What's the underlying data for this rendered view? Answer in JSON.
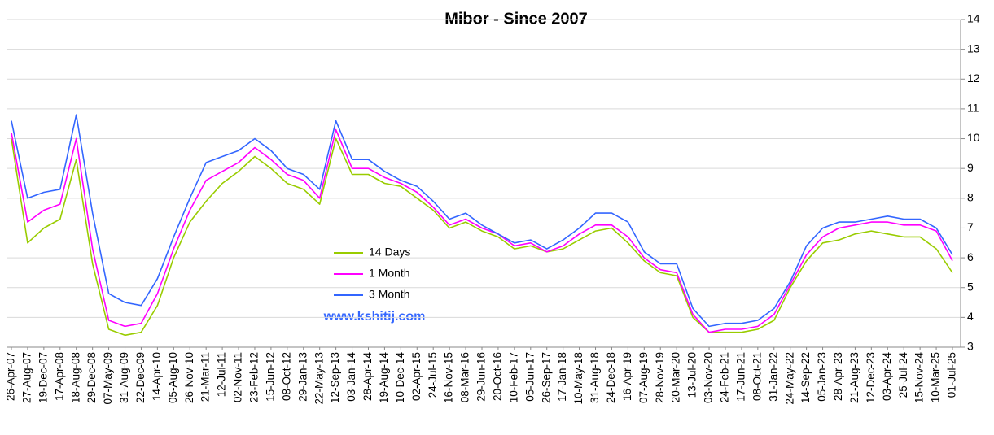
{
  "chart_data": {
    "type": "line",
    "title": "Mibor -  Since 2007",
    "categories": [
      "26-Apr-07",
      "27-Aug-07",
      "19-Dec-07",
      "17-Apr-08",
      "18-Aug-08",
      "29-Dec-08",
      "07-May-09",
      "31-Aug-09",
      "22-Dec-09",
      "14-Apr-10",
      "05-Aug-10",
      "26-Nov-10",
      "21-Mar-11",
      "12-Jul-11",
      "02-Nov-11",
      "23-Feb-12",
      "15-Jun-12",
      "08-Oct-12",
      "29-Jan-13",
      "22-May-13",
      "12-Sep-13",
      "03-Jan-14",
      "28-Apr-14",
      "19-Aug-14",
      "10-Dec-14",
      "02-Apr-15",
      "24-Jul-15",
      "16-Nov-15",
      "08-Mar-16",
      "29-Jun-16",
      "20-Oct-16",
      "10-Feb-17",
      "05-Jun-17",
      "26-Sep-17",
      "17-Jan-18",
      "10-May-18",
      "31-Aug-18",
      "24-Dec-18",
      "16-Apr-19",
      "07-Aug-19",
      "28-Nov-19",
      "20-Mar-20",
      "13-Jul-20",
      "03-Nov-20",
      "24-Feb-21",
      "17-Jun-21",
      "08-Oct-21",
      "31-Jan-22",
      "24-May-22",
      "14-Sep-22",
      "05-Jan-23",
      "28-Apr-23",
      "21-Aug-23",
      "12-Dec-23",
      "03-Apr-24",
      "25-Jul-24",
      "15-Nov-24",
      "10-Mar-25",
      "01-Jul-25"
    ],
    "series": [
      {
        "name": "14 Days",
        "color": "#99cc00",
        "values": [
          10,
          6.5,
          7.0,
          7.3,
          9.3,
          5.8,
          3.6,
          3.4,
          3.5,
          4.4,
          6.0,
          7.2,
          7.9,
          8.5,
          8.9,
          9.4,
          9.0,
          8.5,
          8.3,
          7.8,
          10.0,
          8.8,
          8.8,
          8.5,
          8.4,
          8.0,
          7.6,
          7.0,
          7.2,
          6.9,
          6.7,
          6.3,
          6.4,
          6.2,
          6.3,
          6.6,
          6.9,
          7.0,
          6.5,
          5.9,
          5.5,
          5.4,
          4.0,
          3.5,
          3.5,
          3.5,
          3.6,
          3.9,
          5.0,
          5.9,
          6.5,
          6.6,
          6.8,
          6.9,
          6.8,
          6.7,
          6.7,
          6.3,
          5.5
        ]
      },
      {
        "name": "1 Month",
        "color": "#ff00ff",
        "values": [
          10.2,
          7.2,
          7.6,
          7.8,
          10.0,
          6.3,
          3.9,
          3.7,
          3.8,
          4.8,
          6.3,
          7.6,
          8.6,
          8.9,
          9.2,
          9.7,
          9.3,
          8.8,
          8.6,
          8.0,
          10.3,
          9.0,
          9.0,
          8.7,
          8.5,
          8.2,
          7.7,
          7.1,
          7.3,
          7.0,
          6.8,
          6.4,
          6.5,
          6.2,
          6.4,
          6.8,
          7.1,
          7.1,
          6.7,
          6.0,
          5.6,
          5.5,
          4.1,
          3.5,
          3.6,
          3.6,
          3.7,
          4.1,
          5.1,
          6.1,
          6.7,
          7.0,
          7.1,
          7.2,
          7.2,
          7.1,
          7.1,
          6.9,
          5.9
        ]
      },
      {
        "name": "3 Month",
        "color": "#3366ff",
        "values": [
          10.6,
          8.0,
          8.2,
          8.3,
          10.8,
          7.5,
          4.8,
          4.5,
          4.4,
          5.3,
          6.7,
          8.0,
          9.2,
          9.4,
          9.6,
          10.0,
          9.6,
          9.0,
          8.8,
          8.3,
          10.6,
          9.3,
          9.3,
          8.9,
          8.6,
          8.4,
          7.9,
          7.3,
          7.5,
          7.1,
          6.8,
          6.5,
          6.6,
          6.3,
          6.6,
          7.0,
          7.5,
          7.5,
          7.2,
          6.2,
          5.8,
          5.8,
          4.3,
          3.7,
          3.8,
          3.8,
          3.9,
          4.3,
          5.2,
          6.4,
          7.0,
          7.2,
          7.2,
          7.3,
          7.4,
          7.3,
          7.3,
          7.0,
          6.1
        ]
      }
    ],
    "ylim": [
      3,
      14
    ],
    "yticks": [
      3,
      4,
      5,
      6,
      7,
      8,
      9,
      10,
      11,
      12,
      13,
      14
    ],
    "grid": true,
    "annotations": [
      "www.kshitij.com"
    ]
  }
}
